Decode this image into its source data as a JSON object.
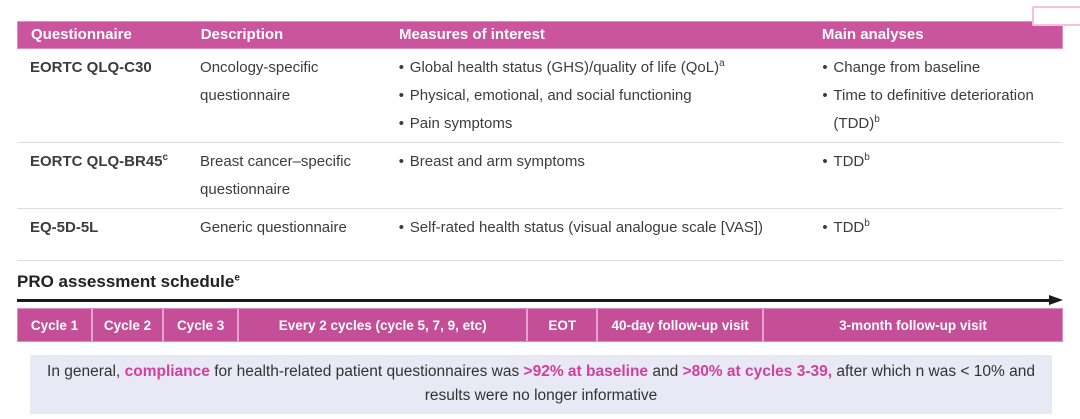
{
  "colors": {
    "header_pink": "#cb549f",
    "timeline_pink": "#c44f98",
    "accent_pink": "#d23f9c",
    "note_background": "#e9e8f5",
    "text_dark": "#3c3c3c"
  },
  "table": {
    "headers": [
      "Questionnaire",
      "Description",
      "Measures of interest",
      "Main analyses"
    ],
    "rows": [
      {
        "questionnaire": "EORTC QLQ-C30",
        "questionnaire_sup": "",
        "description": "Oncology-specific questionnaire",
        "measures": [
          {
            "text": "Global health status (GHS)/quality of life (QoL)",
            "sup": "a"
          },
          {
            "text": "Physical, emotional, and social functioning",
            "sup": ""
          },
          {
            "text": "Pain symptoms",
            "sup": ""
          }
        ],
        "analyses": [
          {
            "text": "Change from baseline",
            "sup": ""
          },
          {
            "text": "Time to definitive deterioration (TDD)",
            "sup": "b"
          }
        ]
      },
      {
        "questionnaire": "EORTC QLQ-BR45",
        "questionnaire_sup": "c",
        "description": "Breast cancer–specific questionnaire",
        "measures": [
          {
            "text": "Breast and arm symptoms",
            "sup": ""
          }
        ],
        "analyses": [
          {
            "text": "TDD",
            "sup": "b"
          }
        ]
      },
      {
        "questionnaire": "EQ-5D-5L",
        "questionnaire_sup": "",
        "description": "Generic questionnaire",
        "measures": [
          {
            "text": "Self-rated health status (visual analogue scale [VAS])",
            "sup": ""
          }
        ],
        "analyses": [
          {
            "text": "TDD",
            "sup": "b"
          }
        ]
      }
    ]
  },
  "schedule": {
    "title": "PRO assessment schedule",
    "title_sup": "e",
    "segments": [
      {
        "label": "Cycle 1"
      },
      {
        "label": "Cycle 2"
      },
      {
        "label": "Cycle 3"
      },
      {
        "label": "Every 2 cycles (cycle 5, 7, 9, etc)"
      },
      {
        "label": "EOT"
      },
      {
        "label": "40-day follow-up visit"
      },
      {
        "label": "3-month follow-up visit"
      }
    ]
  },
  "note": {
    "segments": [
      {
        "text": "In general, "
      },
      {
        "text": "compliance"
      },
      {
        "text": " for health-related patient questionnaires was "
      },
      {
        "text": ">92% at baseline"
      },
      {
        "text": " and "
      },
      {
        "text": ">80% at cycles 3-39,"
      },
      {
        "text": " after which n was < 10% and results were no longer informative"
      }
    ]
  }
}
